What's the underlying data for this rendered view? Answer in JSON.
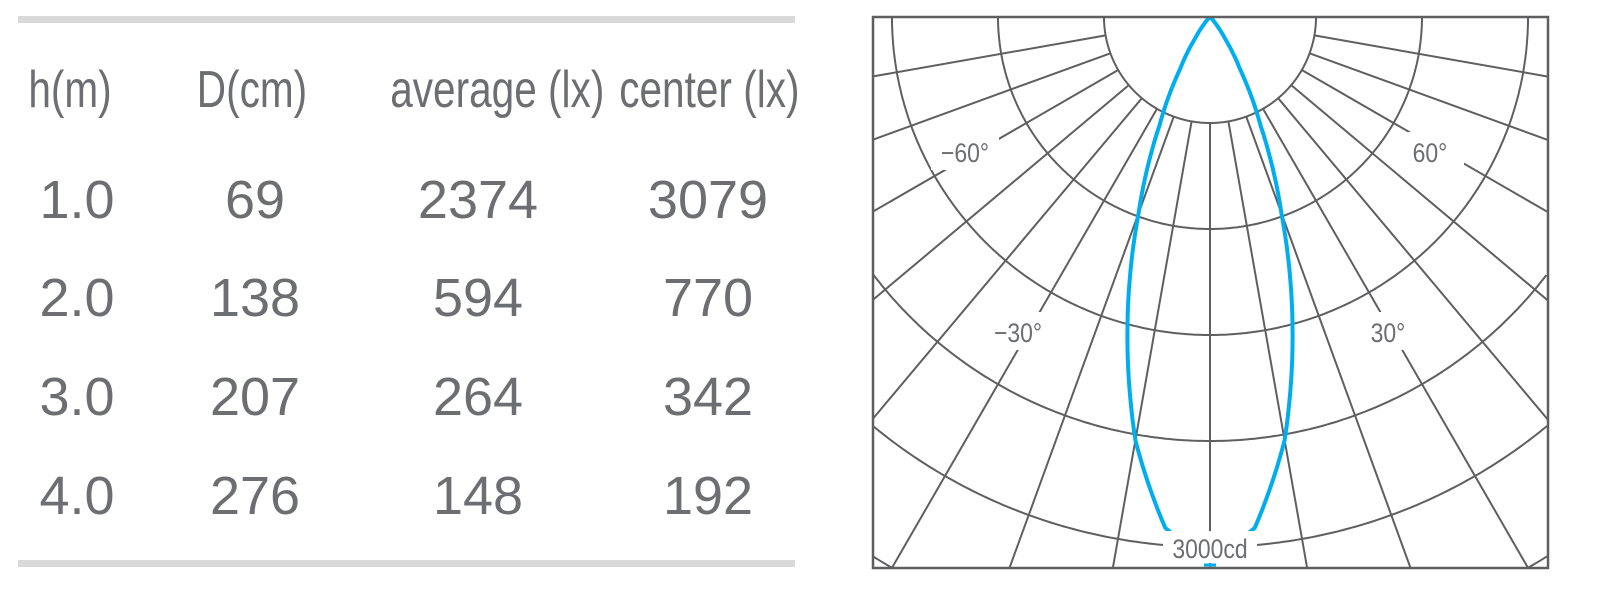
{
  "table": {
    "headers": [
      "h(m)",
      "D(cm)",
      "average (lx)",
      "center (lx)"
    ],
    "rows": [
      [
        "1.0",
        "69",
        "2374",
        "3079"
      ],
      [
        "2.0",
        "138",
        "594",
        "770"
      ],
      [
        "3.0",
        "207",
        "264",
        "342"
      ],
      [
        "4.0",
        "276",
        "148",
        "192"
      ]
    ]
  },
  "chart_data": {
    "type": "polar",
    "angle_labels": [
      "−60°",
      "60°",
      "−30°",
      "30°"
    ],
    "scale_label": "3000cd",
    "scale_value_cd": 3000,
    "grid_ring_step_cd": 600,
    "radial_step_deg": 10,
    "curve_color": "#00aeef",
    "grid_color": "#5f5f61",
    "series": [
      {
        "angles_deg": [
          -50,
          -45,
          -40,
          -35,
          -30,
          -25,
          -20,
          -15,
          -10,
          -5,
          0,
          5,
          10,
          15,
          20,
          25,
          30,
          35,
          40,
          45,
          50
        ],
        "intensity_cd": [
          0,
          15,
          51,
          143,
          336,
          677,
          1181,
          1805,
          2432,
          2903,
          3079,
          2903,
          2432,
          1805,
          1181,
          677,
          336,
          143,
          51,
          15,
          0
        ]
      }
    ]
  }
}
